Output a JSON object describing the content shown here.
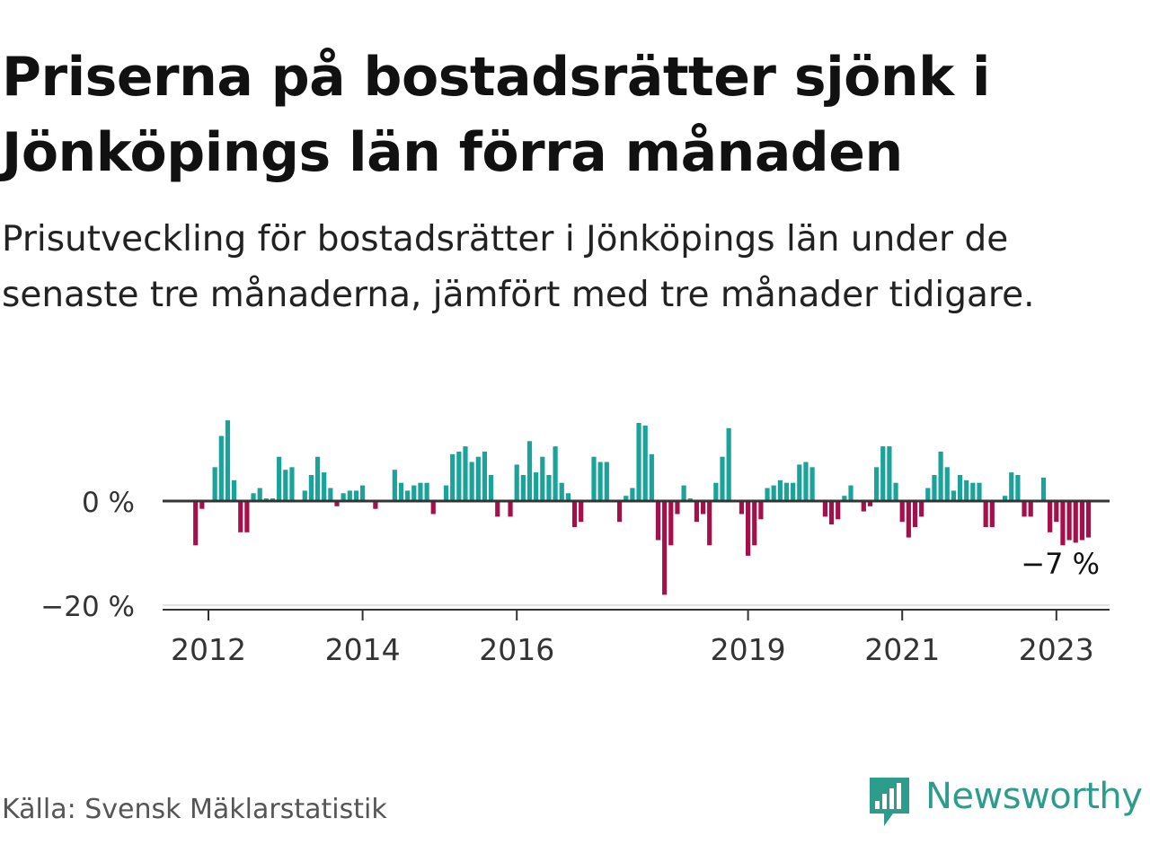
{
  "title": "Priserna på bostadsrätter sjönk i Jönköpings län förra månaden",
  "subtitle": "Prisutveckling för bostadsrätter i Jönköpings län under de senaste tre månaderna, jämfört med tre månader tidigare.",
  "source": "Källa: Svensk Mäklarstatistik",
  "brand": {
    "name": "Newsworthy",
    "icon": "newsworthy-logo-icon"
  },
  "colors": {
    "positive": "#1aa39a",
    "negative": "#a6104a",
    "axis": "#333333",
    "brand": "#2c9d8c"
  },
  "chart_data": {
    "type": "bar",
    "title": "Prisutveckling för bostadsrätter i Jönköpings län",
    "xlabel": "",
    "ylabel": "",
    "ylim": [
      -20,
      17
    ],
    "yticks": [
      0,
      -20
    ],
    "ytick_labels": [
      "0 %",
      "−20 %"
    ],
    "xticks": [
      "2012",
      "2014",
      "2016",
      "2019",
      "2021",
      "2023"
    ],
    "xtick_positions": [
      2012,
      2014,
      2016,
      2019,
      2021,
      2023
    ],
    "start": "2011-11",
    "end_label": "−7 %",
    "series": [
      {
        "name": "Prisutveckling (%)",
        "values": [
          -8.5,
          -1.5,
          0,
          6.5,
          12.5,
          15.5,
          4,
          -6,
          -6,
          1.5,
          2.5,
          0.5,
          0.5,
          8.5,
          6,
          6.5,
          0,
          2,
          5,
          8.5,
          5.5,
          2.5,
          -1,
          1.5,
          2,
          2,
          3,
          0,
          -1.5,
          0,
          0,
          6,
          3.5,
          2,
          3,
          3.5,
          3.5,
          -2.5,
          0,
          3,
          9,
          9.5,
          10.5,
          7.5,
          8.5,
          9.5,
          5,
          -3,
          0,
          -3,
          7,
          5,
          11.5,
          5.5,
          8.5,
          5,
          10.5,
          3.5,
          1.5,
          -5,
          -4,
          0,
          8.5,
          7.5,
          7.5,
          0,
          -4,
          1,
          2.5,
          15,
          14.5,
          9,
          -7.5,
          -18,
          -8.5,
          -2.5,
          3,
          0.5,
          -4,
          -2.5,
          -8.5,
          3.5,
          8.5,
          14,
          0,
          -2.5,
          -10.5,
          -8.5,
          -3.5,
          2.5,
          3,
          4,
          3.5,
          3.5,
          7,
          7.5,
          6.5,
          0,
          -3,
          -4.5,
          -3.5,
          1,
          3,
          0,
          -2,
          -1,
          6.5,
          10.5,
          10.5,
          3.5,
          -4,
          -7,
          -5,
          -3,
          2.5,
          5,
          9.5,
          6.5,
          2,
          5,
          4,
          3.5,
          3.5,
          -5,
          -5,
          0,
          1,
          5.5,
          5,
          -3,
          -3,
          0,
          4.5,
          -6,
          -4,
          -8.5,
          -7.5,
          -8,
          -7.5,
          -7
        ]
      }
    ]
  }
}
